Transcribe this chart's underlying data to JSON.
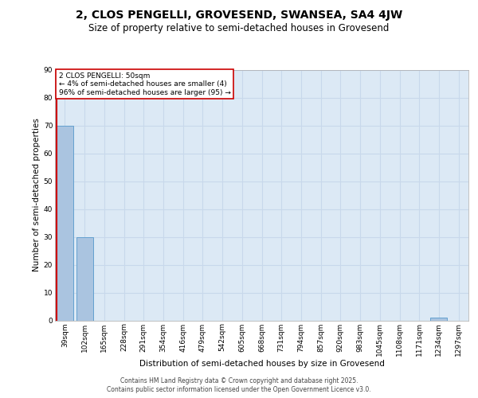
{
  "title": "2, CLOS PENGELLI, GROVESEND, SWANSEA, SA4 4JW",
  "subtitle": "Size of property relative to semi-detached houses in Grovesend",
  "xlabel": "Distribution of semi-detached houses by size in Grovesend",
  "ylabel": "Number of semi-detached properties",
  "categories": [
    "39sqm",
    "102sqm",
    "165sqm",
    "228sqm",
    "291sqm",
    "354sqm",
    "416sqm",
    "479sqm",
    "542sqm",
    "605sqm",
    "668sqm",
    "731sqm",
    "794sqm",
    "857sqm",
    "920sqm",
    "983sqm",
    "1045sqm",
    "1108sqm",
    "1171sqm",
    "1234sqm",
    "1297sqm"
  ],
  "values": [
    70,
    30,
    0,
    0,
    0,
    0,
    0,
    0,
    0,
    0,
    0,
    0,
    0,
    0,
    0,
    0,
    0,
    0,
    0,
    1,
    0
  ],
  "bar_color": "#aac4e0",
  "bar_edge_color": "#5599cc",
  "property_line_color": "#cc0000",
  "annotation_text": "2 CLOS PENGELLI: 50sqm\n← 4% of semi-detached houses are smaller (4)\n96% of semi-detached houses are larger (95) →",
  "annotation_box_color": "#cc0000",
  "ylim": [
    0,
    90
  ],
  "yticks": [
    0,
    10,
    20,
    30,
    40,
    50,
    60,
    70,
    80,
    90
  ],
  "background_color": "#dce9f5",
  "grid_color": "#c8d8eb",
  "footer_line1": "Contains HM Land Registry data © Crown copyright and database right 2025.",
  "footer_line2": "Contains public sector information licensed under the Open Government Licence v3.0.",
  "title_fontsize": 10,
  "subtitle_fontsize": 8.5,
  "tick_fontsize": 6.5,
  "ylabel_fontsize": 7.5,
  "xlabel_fontsize": 7.5,
  "footer_fontsize": 5.5
}
